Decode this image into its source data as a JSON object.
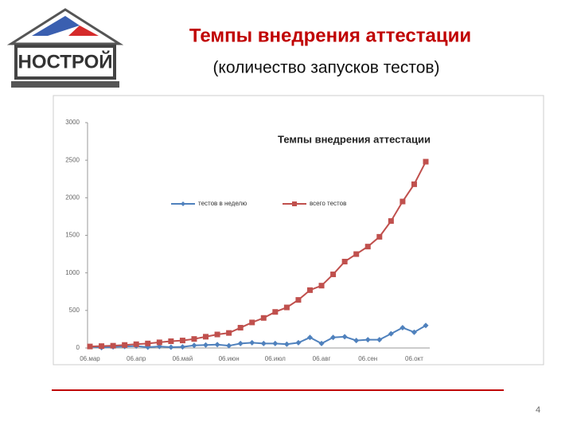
{
  "slide": {
    "logo_text": "НОСТРОЙ",
    "title": "Темпы внедрения аттестации",
    "subtitle": "(количество запусков тестов)",
    "page_number": "4"
  },
  "chart_data": {
    "type": "line",
    "title": "Темпы внедрения аттестации",
    "categories": [
      "06.мар",
      null,
      null,
      null,
      "06.апр",
      null,
      null,
      null,
      "06.май",
      null,
      null,
      null,
      "06.июн",
      null,
      null,
      null,
      "06.июл",
      null,
      null,
      null,
      "06.авг",
      null,
      null,
      null,
      "06.сен",
      null,
      null,
      null,
      "06.окт",
      null
    ],
    "series": [
      {
        "name": "тестов в неделю",
        "color": "#4f81bd",
        "marker": "diamond",
        "values": [
          20,
          5,
          15,
          20,
          25,
          10,
          20,
          10,
          15,
          35,
          40,
          45,
          30,
          60,
          70,
          60,
          60,
          50,
          70,
          140,
          60,
          140,
          150,
          100,
          110,
          110,
          190,
          270,
          210,
          300
        ]
      },
      {
        "name": "всего тестов",
        "color": "#c0504d",
        "marker": "square",
        "values": [
          20,
          25,
          30,
          40,
          50,
          60,
          75,
          90,
          100,
          120,
          150,
          180,
          200,
          270,
          340,
          400,
          480,
          540,
          640,
          770,
          830,
          980,
          1150,
          1250,
          1350,
          1480,
          1690,
          1950,
          2180,
          2480
        ]
      }
    ],
    "ylim": [
      0,
      3000
    ],
    "yticks": [
      0,
      500,
      1000,
      1500,
      2000,
      2500,
      3000
    ]
  }
}
